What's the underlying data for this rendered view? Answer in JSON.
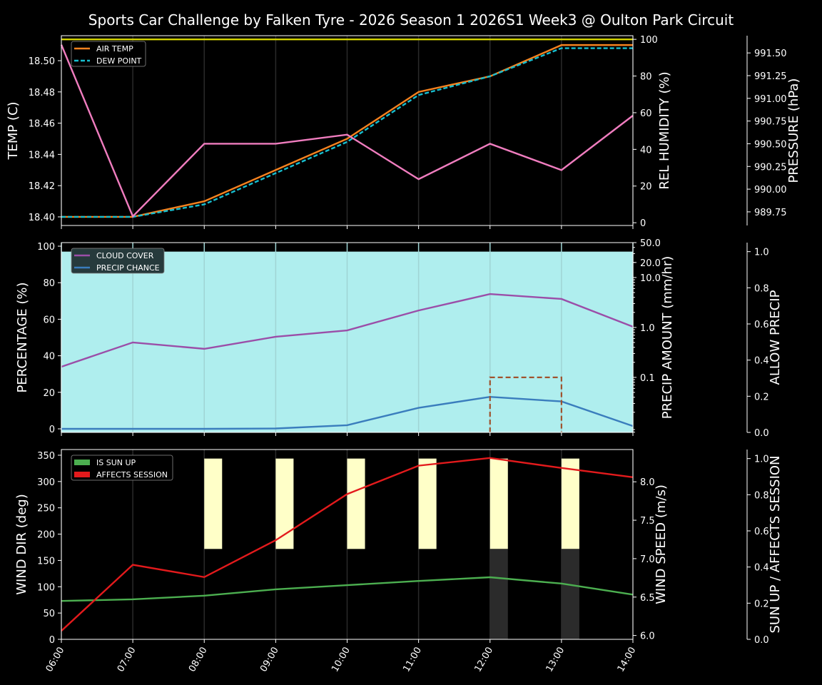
{
  "title": "Sports Car Challenge by Falken Tyre - 2026 Season 1 2026S1 Week3 @ Oulton Park Circuit",
  "colors": {
    "background": "#000000",
    "air_temp": "#f5821f",
    "dew_point": "#17becf",
    "humidity": "#d4d400",
    "pressure": "#f07dbf",
    "cloud_cover": "#9b4ea8",
    "precip_chance": "#3a7dbd",
    "precip_amount": "#a0522d",
    "allow_precip_fill": "#afeeee",
    "wind_dir": "#4caf50",
    "wind_speed": "#e31a1c",
    "sun_up": "#ffffc8",
    "affects_session": "#2b2b2b"
  },
  "chart_data": [
    {
      "type": "line",
      "x": [
        "06:00",
        "07:00",
        "08:00",
        "09:00",
        "10:00",
        "11:00",
        "12:00",
        "13:00",
        "14:00"
      ],
      "xlim": [
        "06:00",
        "14:00"
      ],
      "grid": "vertical",
      "legend": {
        "placement": "top-left",
        "entries": [
          "AIR TEMP",
          "DEW POINT"
        ]
      },
      "axes": {
        "left": {
          "label": "TEMP (C)",
          "lim": [
            18.3945,
            18.516
          ],
          "ticks": [
            "18.40",
            "18.42",
            "18.44",
            "18.46",
            "18.48",
            "18.50"
          ]
        },
        "right": {
          "label": "REL HUMIDITY (%)",
          "lim": [
            -1.5,
            102
          ],
          "ticks": [
            "0",
            "20",
            "40",
            "60",
            "80",
            "100"
          ]
        },
        "right2": {
          "label": "PRESSURE (hPa)",
          "lim": [
            989.6,
            991.69
          ],
          "ticks": [
            "989.75",
            "990.00",
            "990.25",
            "990.50",
            "990.75",
            "991.00",
            "991.25",
            "991.50"
          ]
        }
      },
      "series": [
        {
          "name": "AIR TEMP",
          "axis": "left",
          "style": "solid",
          "values": [
            18.4,
            18.4,
            18.41,
            18.43,
            18.45,
            18.48,
            18.49,
            18.51,
            18.51
          ]
        },
        {
          "name": "DEW POINT",
          "axis": "left",
          "style": "dashed",
          "values": [
            18.4,
            18.4,
            18.408,
            18.428,
            18.448,
            18.478,
            18.49,
            18.508,
            18.508
          ]
        },
        {
          "axis": "right",
          "style": "solid",
          "values": [
            100,
            100,
            100,
            100,
            100,
            100,
            100,
            100,
            100
          ]
        },
        {
          "axis": "right2",
          "style": "solid",
          "values": [
            991.59,
            989.7,
            990.5,
            990.5,
            990.6,
            990.11,
            990.5,
            990.21,
            990.81
          ]
        }
      ]
    },
    {
      "type": "line",
      "x": [
        "06:00",
        "07:00",
        "08:00",
        "09:00",
        "10:00",
        "11:00",
        "12:00",
        "13:00",
        "14:00"
      ],
      "xlim": [
        "06:00",
        "14:00"
      ],
      "grid": "vertical",
      "legend": {
        "placement": "top-left",
        "entries": [
          "CLOUD COVER",
          "PRECIP CHANCE"
        ]
      },
      "axes": {
        "left": {
          "label": "PERCENTAGE (%)",
          "lim": [
            -1.95,
            101.95
          ],
          "ticks": [
            "0",
            "20",
            "40",
            "60",
            "80",
            "100"
          ]
        },
        "right": {
          "label": "PRECIP AMOUNT (mm/hr)",
          "scale": "log",
          "lim": [
            0.0079,
            50
          ],
          "ticks": [
            "0.1",
            "1.0",
            "10.0",
            "20.0",
            "50.0"
          ]
        },
        "right2": {
          "label": "ALLOW PRECIP",
          "lim": [
            0,
            1.05
          ],
          "ticks": [
            "0.0",
            "0.2",
            "0.4",
            "0.6",
            "0.8",
            "1.0"
          ]
        }
      },
      "series": [
        {
          "name": "CLOUD COVER",
          "axis": "left",
          "values": [
            34,
            47.3,
            43.8,
            50.4,
            53.9,
            64.8,
            73.8,
            71.1,
            55.9
          ]
        },
        {
          "name": "PRECIP CHANCE",
          "axis": "left",
          "values": [
            0,
            0,
            0,
            0.2,
            2,
            11.5,
            17.5,
            15,
            1.5
          ]
        },
        {
          "axis": "right",
          "style": "dashed-step",
          "values": [
            0,
            0,
            0,
            0,
            0,
            0,
            0.1,
            0,
            0
          ]
        },
        {
          "axis": "right2",
          "style": "fill",
          "values": [
            1,
            1,
            1,
            1,
            1,
            1,
            1,
            1,
            1
          ]
        }
      ]
    },
    {
      "type": "line",
      "x": [
        "06:00",
        "07:00",
        "08:00",
        "09:00",
        "10:00",
        "11:00",
        "12:00",
        "13:00",
        "14:00"
      ],
      "xlim": [
        "06:00",
        "14:00"
      ],
      "grid": "vertical",
      "legend": {
        "placement": "top-left",
        "entries": [
          "IS SUN UP",
          "AFFECTS SESSION"
        ]
      },
      "axes": {
        "left": {
          "label": "WIND DIR (deg)",
          "lim": [
            0,
            360.8
          ],
          "ticks": [
            "0",
            "50",
            "100",
            "150",
            "200",
            "250",
            "300",
            "350"
          ]
        },
        "right": {
          "label": "WIND SPEED (m/s)",
          "lim": [
            5.95,
            8.42
          ],
          "ticks": [
            "6.0",
            "6.5",
            "7.0",
            "7.5",
            "8.0"
          ]
        },
        "right2": {
          "label": "SUN UP / AFFECTS SESSION",
          "lim": [
            0,
            1.05
          ],
          "ticks": [
            "0.0",
            "0.2",
            "0.4",
            "0.6",
            "0.8",
            "1.0"
          ]
        }
      },
      "series": [
        {
          "axis": "left",
          "values": [
            73,
            76,
            83,
            95,
            103,
            111,
            118,
            106,
            85
          ]
        },
        {
          "axis": "right",
          "values": [
            6.06,
            6.92,
            6.76,
            7.24,
            7.84,
            8.21,
            8.31,
            8.18,
            8.06
          ]
        },
        {
          "name": "IS SUN UP",
          "axis": "right2",
          "style": "bar",
          "values": [
            0,
            0,
            1,
            1,
            1,
            1,
            1,
            1,
            0
          ]
        },
        {
          "name": "AFFECTS SESSION",
          "axis": "right2",
          "style": "bar",
          "values": [
            0,
            0,
            0,
            0,
            0,
            0,
            1,
            1,
            0
          ]
        }
      ]
    }
  ]
}
